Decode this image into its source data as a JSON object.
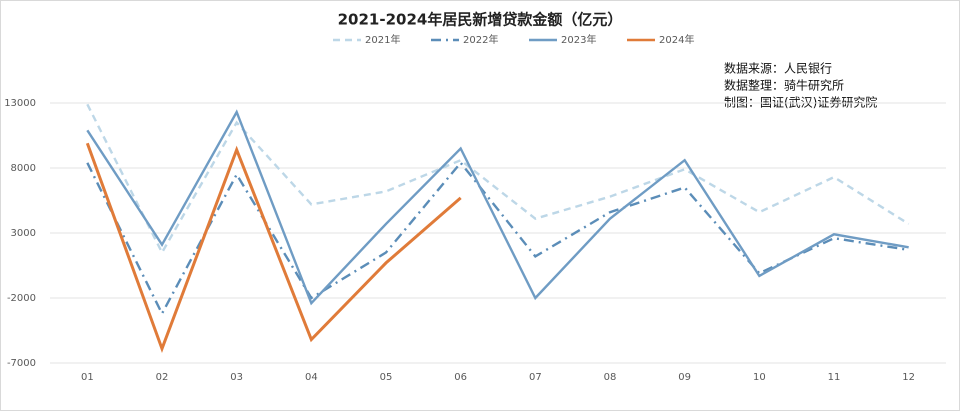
{
  "chart_data": {
    "type": "line",
    "title": "2021-2024年居民新增贷款金额（亿元）",
    "annotations": [
      "数据来源：人民银行",
      "数据整理：骑牛研究所",
      "制图：国证(武汉)证券研究院"
    ],
    "categories": [
      "01",
      "02",
      "03",
      "04",
      "05",
      "06",
      "07",
      "08",
      "09",
      "10",
      "11",
      "12"
    ],
    "series": [
      {
        "name": "2021年",
        "color": "#bdd7e7",
        "dash": "dashed",
        "values": [
          12900,
          1500,
          11500,
          5200,
          6200,
          8600,
          4100,
          5800,
          7900,
          4600,
          7300,
          3700
        ]
      },
      {
        "name": "2022年",
        "color": "#5b8db8",
        "dash": "dashdot",
        "values": [
          8400,
          -3200,
          7500,
          -2000,
          1500,
          8400,
          1200,
          4600,
          6500,
          -100,
          2600,
          1700
        ]
      },
      {
        "name": "2023年",
        "color": "#6f9cc4",
        "dash": "solid",
        "values": [
          10900,
          2100,
          12300,
          -2400,
          3700,
          9500,
          -2000,
          4100,
          8600,
          -300,
          2900,
          1900
        ]
      },
      {
        "name": "2024年",
        "color": "#e07b39",
        "dash": "solid",
        "values": [
          9900,
          -5900,
          9400,
          -5200,
          700,
          5700,
          null,
          null,
          null,
          null,
          null,
          null
        ]
      }
    ],
    "ylim": [
      -7000,
      13000
    ],
    "yticks": [
      -7000,
      -2000,
      3000,
      8000,
      13000
    ],
    "grid": true
  }
}
